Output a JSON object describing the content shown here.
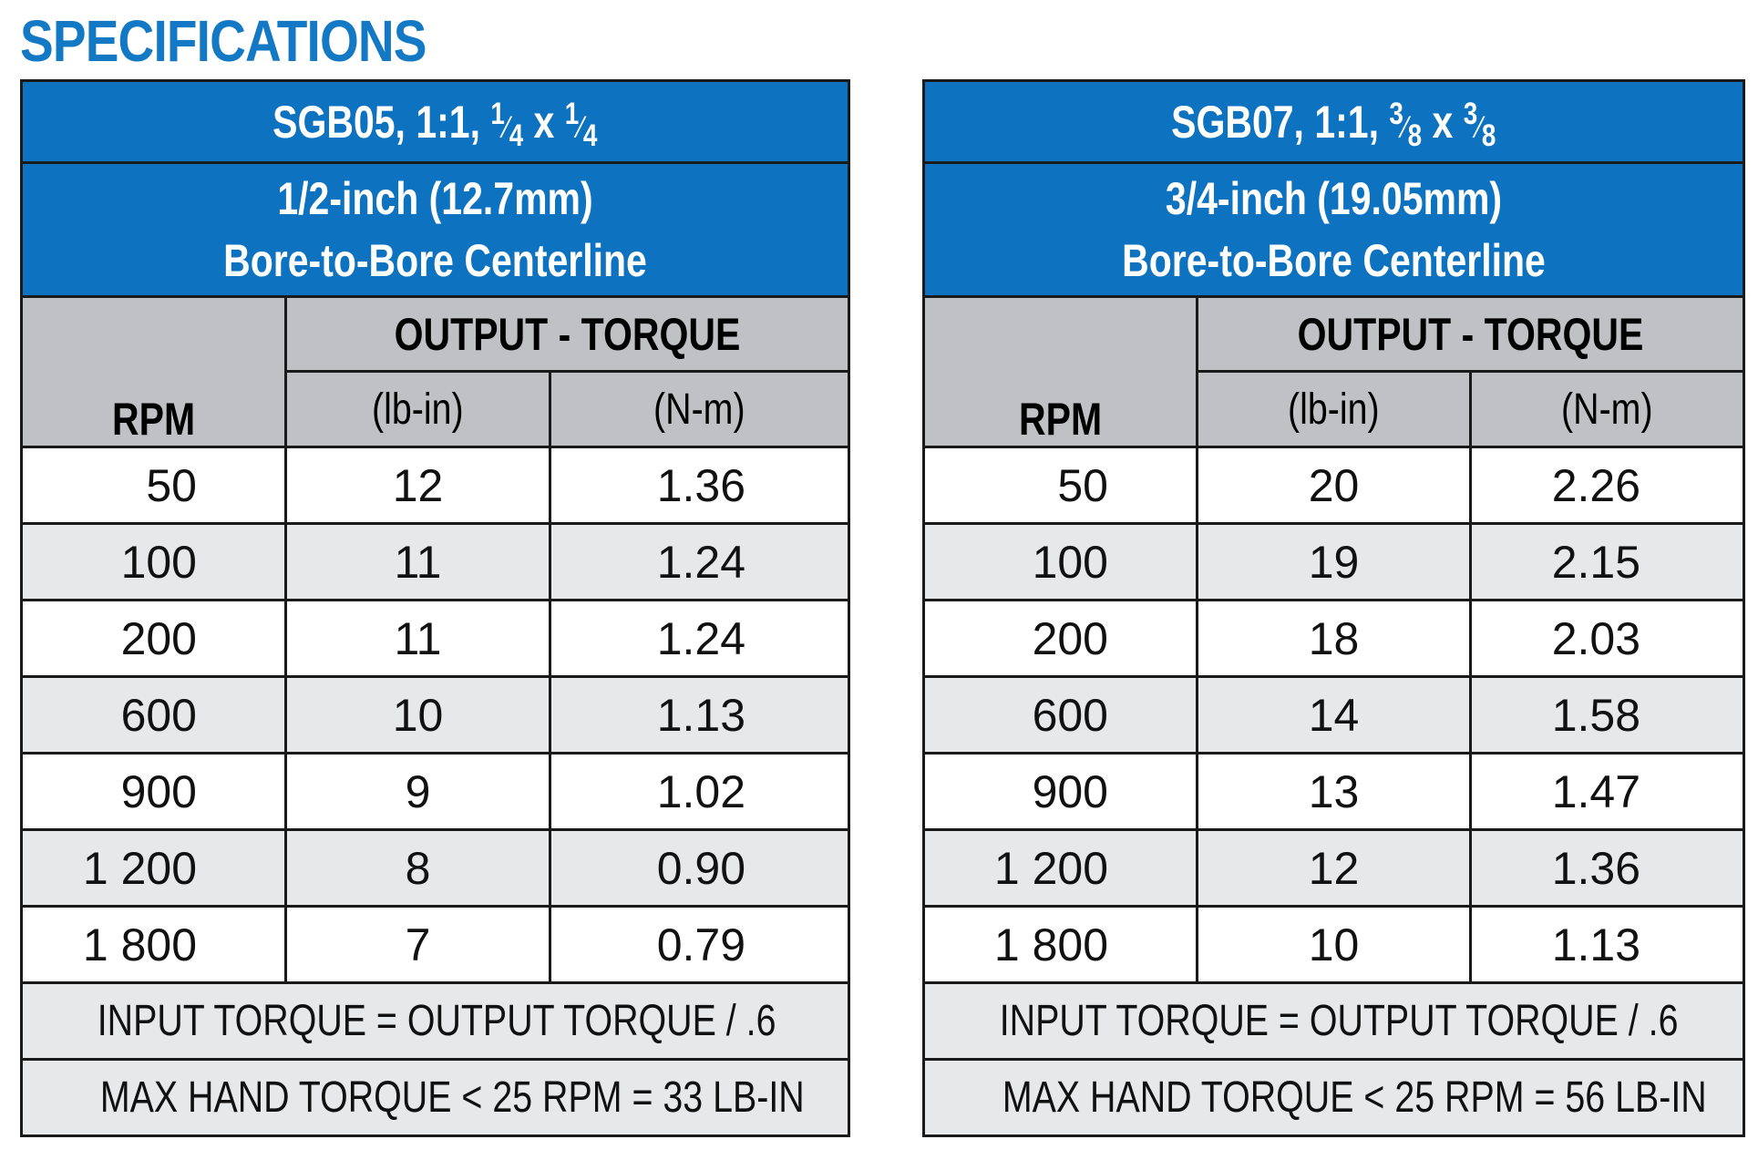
{
  "heading": "SPECIFICATIONS",
  "tables": [
    {
      "model": "SGB05, 1:1,",
      "size_num": "1",
      "size_den": "4",
      "size_x": "x",
      "bore_line1": "1/2-inch (12.7mm)",
      "bore_line2": "Bore-to-Bore Centerline",
      "rpm_label": "RPM",
      "output_label": "OUTPUT - TORQUE",
      "unit_lbin": "(lb-in)",
      "unit_nm": "(N-m)",
      "rows": [
        {
          "rpm": "50",
          "lbin": "12",
          "nm": "1.36"
        },
        {
          "rpm": "100",
          "lbin": "11",
          "nm": "1.24"
        },
        {
          "rpm": "200",
          "lbin": "11",
          "nm": "1.24"
        },
        {
          "rpm": "600",
          "lbin": "10",
          "nm": "1.13"
        },
        {
          "rpm": "900",
          "lbin": "9",
          "nm": "1.02"
        },
        {
          "rpm": "1 200",
          "lbin": "8",
          "nm": "0.90"
        },
        {
          "rpm": "1 800",
          "lbin": "7",
          "nm": "0.79"
        }
      ],
      "footer_input": "INPUT TORQUE = OUTPUT TORQUE / .6",
      "footer_max": "MAX HAND TORQUE < 25 RPM = 33 LB-IN"
    },
    {
      "model": "SGB07, 1:1,",
      "size_num": "3",
      "size_den": "8",
      "size_x": "x",
      "bore_line1": "3/4-inch (19.05mm)",
      "bore_line2": "Bore-to-Bore Centerline",
      "rpm_label": "RPM",
      "output_label": "OUTPUT - TORQUE",
      "unit_lbin": "(lb-in)",
      "unit_nm": "(N-m)",
      "rows": [
        {
          "rpm": "50",
          "lbin": "20",
          "nm": "2.26"
        },
        {
          "rpm": "100",
          "lbin": "19",
          "nm": "2.15"
        },
        {
          "rpm": "200",
          "lbin": "18",
          "nm": "2.03"
        },
        {
          "rpm": "600",
          "lbin": "14",
          "nm": "1.58"
        },
        {
          "rpm": "900",
          "lbin": "13",
          "nm": "1.47"
        },
        {
          "rpm": "1 200",
          "lbin": "12",
          "nm": "1.36"
        },
        {
          "rpm": "1 800",
          "lbin": "10",
          "nm": "1.13"
        }
      ],
      "footer_input": "INPUT TORQUE = OUTPUT TORQUE / .6",
      "footer_max": "MAX HAND TORQUE < 25 RPM = 56 LB-IN"
    }
  ],
  "colors": {
    "heading": "#1479c4",
    "header_blue": "#0d72bf",
    "header_gray": "#bfc1c4",
    "row_shade": "#e7e8e9",
    "border": "#1a1a1a"
  }
}
